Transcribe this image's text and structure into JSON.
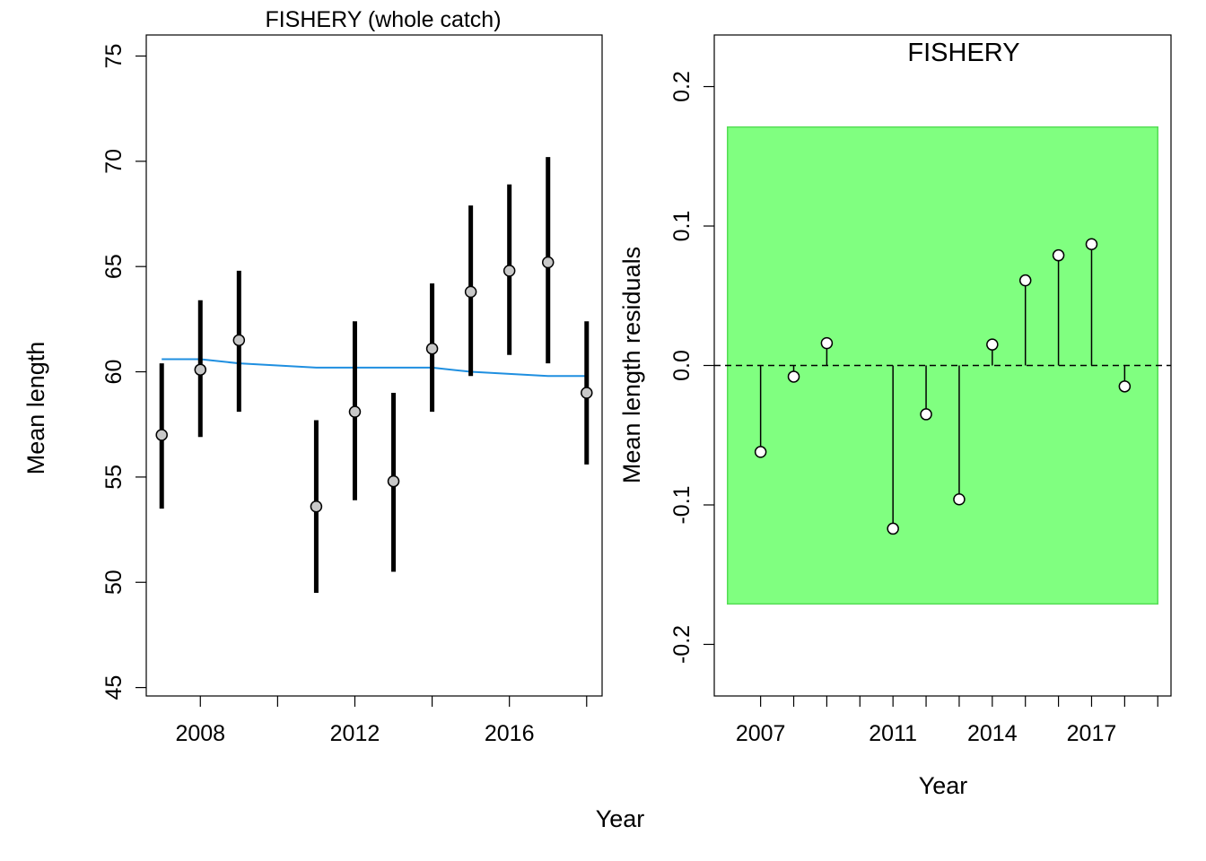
{
  "outer": {
    "xlabel": "Year"
  },
  "chart_data": [
    {
      "type": "scatter",
      "title": "FISHERY (whole catch)",
      "xlabel": "",
      "ylabel": "Mean length",
      "xlim": [
        2006.6,
        2018.4
      ],
      "ylim": [
        44.6,
        76.0
      ],
      "x_ticks": [
        2008,
        2010,
        2012,
        2014,
        2016,
        2018
      ],
      "x_tick_labels": [
        "2008",
        "",
        "2012",
        "",
        "2016",
        ""
      ],
      "y_ticks": [
        45,
        50,
        55,
        60,
        65,
        70,
        75
      ],
      "y_tick_labels": [
        "45",
        "50",
        "55",
        "60",
        "65",
        "70",
        "75"
      ],
      "points": [
        {
          "x": 2007,
          "y": 57.0,
          "lo": 53.5,
          "hi": 60.4
        },
        {
          "x": 2008,
          "y": 60.1,
          "lo": 56.9,
          "hi": 63.4
        },
        {
          "x": 2009,
          "y": 61.5,
          "lo": 58.1,
          "hi": 64.8
        },
        {
          "x": 2011,
          "y": 53.6,
          "lo": 49.5,
          "hi": 57.7
        },
        {
          "x": 2012,
          "y": 58.1,
          "lo": 53.9,
          "hi": 62.4
        },
        {
          "x": 2013,
          "y": 54.8,
          "lo": 50.5,
          "hi": 59.0
        },
        {
          "x": 2014,
          "y": 61.1,
          "lo": 58.1,
          "hi": 64.2
        },
        {
          "x": 2015,
          "y": 63.8,
          "lo": 59.8,
          "hi": 67.9
        },
        {
          "x": 2016,
          "y": 64.8,
          "lo": 60.8,
          "hi": 68.9
        },
        {
          "x": 2017,
          "y": 65.2,
          "lo": 60.4,
          "hi": 70.2
        },
        {
          "x": 2018,
          "y": 59.0,
          "lo": 55.6,
          "hi": 62.4
        }
      ],
      "fit_line": {
        "color": "#1f8fe0",
        "x": [
          2007,
          2008,
          2009,
          2011,
          2012,
          2013,
          2014,
          2015,
          2016,
          2017,
          2018
        ],
        "y": [
          60.6,
          60.6,
          60.4,
          60.2,
          60.2,
          60.2,
          60.2,
          60.0,
          59.9,
          59.8,
          59.8
        ]
      },
      "colors": {
        "point_fill": "#c8c8c8",
        "errorbar": "#000000"
      }
    },
    {
      "type": "scatter",
      "title": "FISHERY",
      "xlabel": "Year",
      "ylabel": "Mean length residuals",
      "xlim": [
        2005.6,
        2019.4
      ],
      "ylim": [
        -0.237,
        0.237
      ],
      "x_ticks": [
        2007,
        2008,
        2009,
        2010,
        2011,
        2012,
        2013,
        2014,
        2015,
        2016,
        2017,
        2018,
        2019
      ],
      "x_tick_labels": [
        "2007",
        "",
        "",
        "",
        "2011",
        "",
        "",
        "2014",
        "",
        "",
        "2017",
        "",
        ""
      ],
      "y_ticks": [
        -0.2,
        -0.1,
        0.0,
        0.1,
        0.2
      ],
      "y_tick_labels": [
        "-0.2",
        "-0.1",
        "0.0",
        "0.1",
        "0.2"
      ],
      "band": {
        "xmin": 2006.0,
        "xmax": 2019.0,
        "ymin": -0.171,
        "ymax": 0.171,
        "color": "#80ff80",
        "border": "#55dd55"
      },
      "reference_line": 0.0,
      "points": [
        {
          "x": 2007,
          "y": -0.062
        },
        {
          "x": 2008,
          "y": -0.008
        },
        {
          "x": 2009,
          "y": 0.016
        },
        {
          "x": 2011,
          "y": -0.117
        },
        {
          "x": 2012,
          "y": -0.035
        },
        {
          "x": 2013,
          "y": -0.096
        },
        {
          "x": 2014,
          "y": 0.015
        },
        {
          "x": 2015,
          "y": 0.061
        },
        {
          "x": 2016,
          "y": 0.079
        },
        {
          "x": 2017,
          "y": 0.087
        },
        {
          "x": 2018,
          "y": -0.015
        }
      ]
    }
  ]
}
